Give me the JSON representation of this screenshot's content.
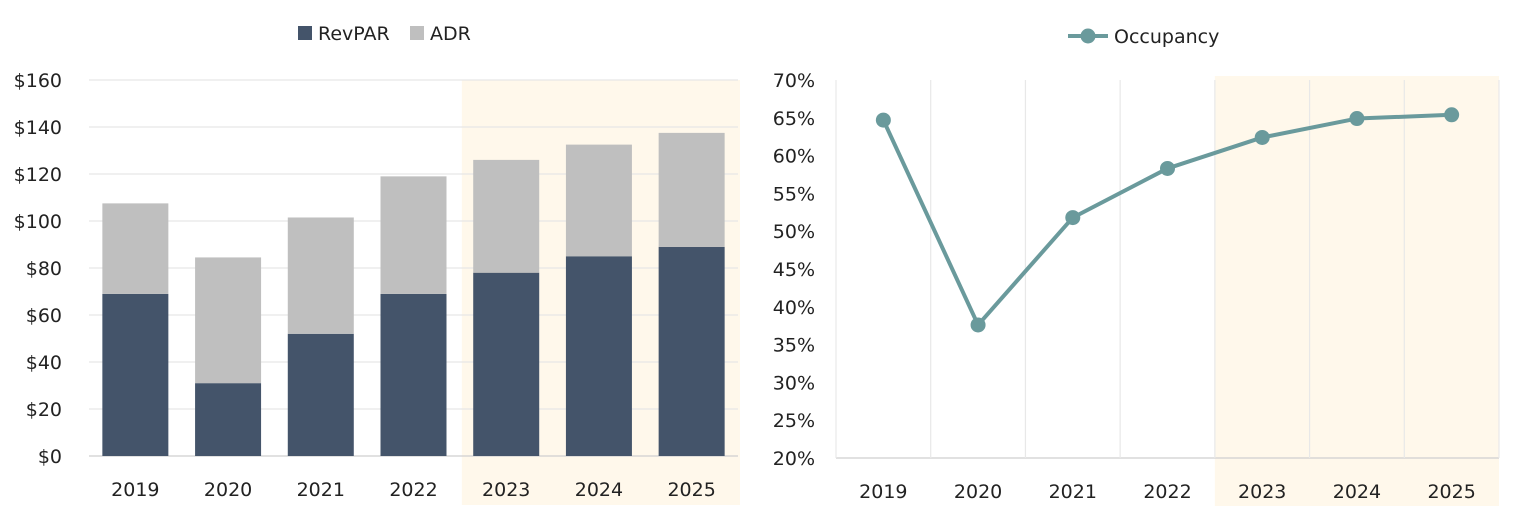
{
  "chart_data": [
    {
      "type": "bar",
      "stacked": true,
      "categories": [
        "2019",
        "2020",
        "2021",
        "2022",
        "2023",
        "2024",
        "2025"
      ],
      "series": [
        {
          "name": "RevPAR",
          "values": [
            69,
            31,
            52,
            69,
            78,
            85,
            89
          ],
          "color": "#44546A"
        },
        {
          "name": "ADR",
          "values": [
            38.5,
            53.5,
            49.5,
            50,
            48,
            47.5,
            48.5
          ],
          "color": "#BFBFBF"
        }
      ],
      "ylim": [
        0,
        160
      ],
      "y_ticks": [
        0,
        20,
        40,
        60,
        80,
        100,
        120,
        140,
        160
      ],
      "y_tick_labels": [
        "$0",
        "$20",
        "$40",
        "$60",
        "$80",
        "$100",
        "$120",
        "$140",
        "$160"
      ],
      "highlight_categories": [
        "2023",
        "2024",
        "2025"
      ],
      "highlight_color": "#FFF8EB",
      "grid": true,
      "legend_position": "top-center"
    },
    {
      "type": "line",
      "categories": [
        "2019",
        "2020",
        "2021",
        "2022",
        "2023",
        "2024",
        "2025"
      ],
      "series": [
        {
          "name": "Occupancy",
          "values": [
            64.7,
            37.6,
            51.8,
            58.3,
            62.4,
            64.9,
            65.4
          ],
          "color": "#6A9A9C"
        }
      ],
      "ylim": [
        20,
        70
      ],
      "y_ticks": [
        20,
        25,
        30,
        35,
        40,
        45,
        50,
        55,
        60,
        65,
        70
      ],
      "y_tick_labels": [
        "20%",
        "25%",
        "30%",
        "35%",
        "40%",
        "45%",
        "50%",
        "55%",
        "60%",
        "65%",
        "70%"
      ],
      "highlight_categories": [
        "2023",
        "2024",
        "2025"
      ],
      "highlight_color": "#FFF8EB",
      "grid": true,
      "legend_position": "top-center"
    }
  ]
}
